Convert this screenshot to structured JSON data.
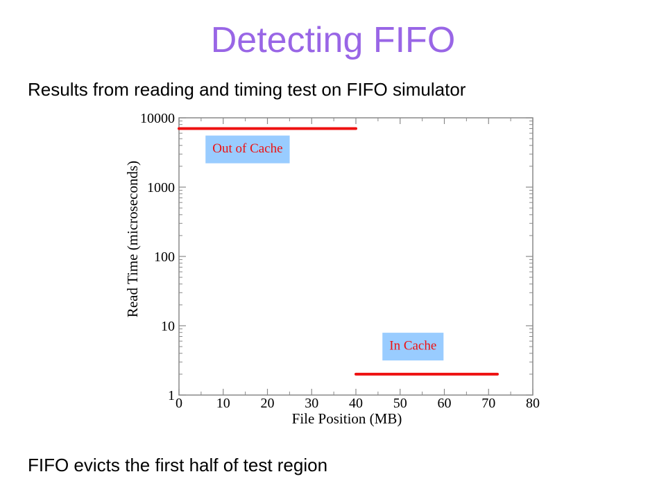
{
  "slide": {
    "title": "Detecting FIFO",
    "subtitle": "Results from reading and timing test on FIFO simulator",
    "footer": "FIFO evicts the first half of test region"
  },
  "colors": {
    "title": "#9966e6",
    "series": "#ee1111",
    "annotation_bg": "#99ccff",
    "annotation_text": "#ee1111"
  },
  "chart_data": {
    "type": "line",
    "xlabel": "File Position (MB)",
    "ylabel": "Read Time (microseconds)",
    "xlim": [
      0,
      80
    ],
    "ylim": [
      1,
      10000
    ],
    "yscale": "log",
    "grid": false,
    "xticks": [
      0,
      10,
      20,
      30,
      40,
      50,
      60,
      70,
      80
    ],
    "yticks": [
      1,
      10,
      100,
      1000,
      10000
    ],
    "xtick_labels": [
      "0",
      "10",
      "20",
      "30",
      "40",
      "50",
      "60",
      "70",
      "80"
    ],
    "ytick_labels": [
      "1",
      "10",
      "100",
      "1000",
      "10000"
    ],
    "series": [
      {
        "x": [
          0,
          40
        ],
        "y": [
          7000,
          7000
        ]
      },
      {
        "x": [
          40,
          72
        ],
        "y": [
          2,
          2
        ]
      }
    ],
    "annotations": [
      {
        "text": "Out of Cache",
        "x": 6,
        "y": 3500
      },
      {
        "text": "In Cache",
        "x": 46,
        "y": 5
      }
    ]
  }
}
